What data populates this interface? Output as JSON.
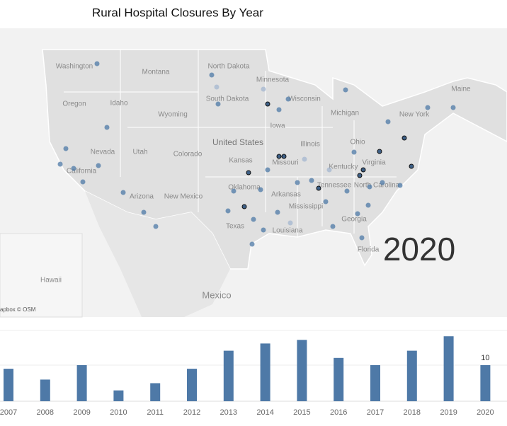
{
  "chart_data": {
    "type": "bar",
    "title": "Rural Hospital Closures By Year",
    "categories": [
      "2007",
      "2008",
      "2009",
      "2010",
      "2011",
      "2012",
      "2013",
      "2014",
      "2015",
      "2016",
      "2017",
      "2018",
      "2019",
      "2020"
    ],
    "values": [
      9,
      6,
      10,
      3,
      5,
      9,
      14,
      16,
      17,
      12,
      10,
      14,
      18,
      10
    ],
    "color": "#4e79a7"
  },
  "map": {
    "year_label": "2020",
    "attribution": "apbox © OSM",
    "country_label": "United States",
    "labels": [
      "Washington",
      "Montana",
      "North Dakota",
      "Oregon",
      "Idaho",
      "Wyoming",
      "South Dakota",
      "Minnesota",
      "Wisconsin",
      "Michigan",
      "Maine",
      "New York",
      "Iowa",
      "Nevada",
      "Utah",
      "Colorado",
      "Kansas",
      "Illinois",
      "Ohio",
      "Missouri",
      "California",
      "Kentucky",
      "Virginia",
      "Oklahoma",
      "Arkansas",
      "Tennessee",
      "North Carolina",
      "Arizona",
      "New Mexico",
      "Mississippi",
      "Texas",
      "Louisiana",
      "Georgia",
      "Florida",
      "Hawaii",
      "Mexico"
    ]
  }
}
